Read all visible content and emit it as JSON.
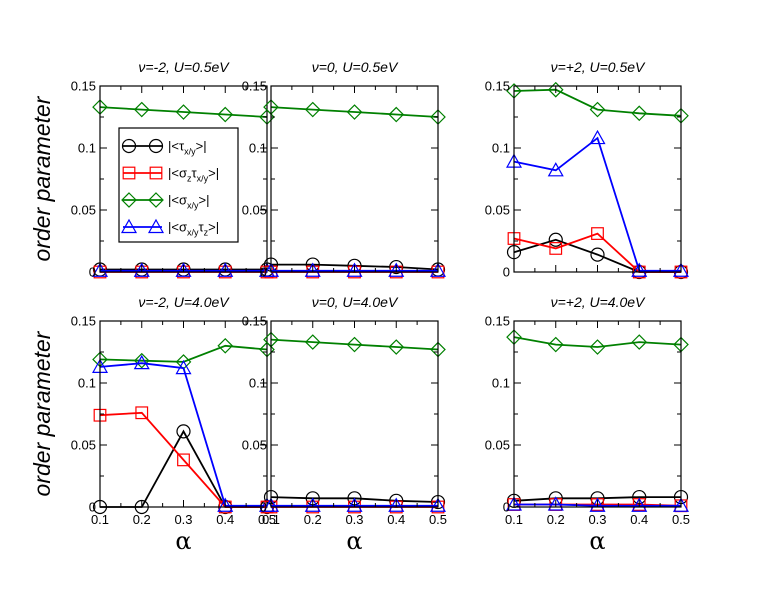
{
  "chart_data": [
    {
      "type": "line",
      "title": "ν=-2, U=0.5eV",
      "xlabel": "",
      "ylabel": "order parameter",
      "x": [
        0.1,
        0.2,
        0.3,
        0.4,
        0.5
      ],
      "xlim": [
        0.1,
        0.5
      ],
      "ylim": [
        0,
        0.15
      ],
      "series": [
        {
          "name": "|<τx/y>|",
          "color": "#000000",
          "marker": "circle",
          "values": [
            0.002,
            0.002,
            0.002,
            0.002,
            0.002
          ]
        },
        {
          "name": "|<σzτx/y>|",
          "color": "#ff0000",
          "marker": "square",
          "values": [
            0.0,
            0.0,
            0.0,
            0.0,
            0.0
          ]
        },
        {
          "name": "|<σx/y>|",
          "color": "#008000",
          "marker": "diamond",
          "values": [
            0.133,
            0.131,
            0.129,
            0.127,
            0.125
          ]
        },
        {
          "name": "|<σx/yτz>|",
          "color": "#0000ff",
          "marker": "triangle",
          "values": [
            0.001,
            0.001,
            0.001,
            0.001,
            0.001
          ]
        }
      ]
    },
    {
      "type": "line",
      "title": "ν=0, U=0.5eV",
      "xlabel": "",
      "ylabel": "",
      "x": [
        0.1,
        0.2,
        0.3,
        0.4,
        0.5
      ],
      "xlim": [
        0.1,
        0.5
      ],
      "ylim": [
        0,
        0.15
      ],
      "series": [
        {
          "name": "|<τx/y>|",
          "color": "#000000",
          "marker": "circle",
          "values": [
            0.006,
            0.006,
            0.005,
            0.004,
            0.002
          ]
        },
        {
          "name": "|<σzτx/y>|",
          "color": "#ff0000",
          "marker": "square",
          "values": [
            0.0,
            0.0,
            0.0,
            0.0,
            0.0
          ]
        },
        {
          "name": "|<σx/y>|",
          "color": "#008000",
          "marker": "diamond",
          "values": [
            0.133,
            0.131,
            0.129,
            0.127,
            0.125
          ]
        },
        {
          "name": "|<σx/yτz>|",
          "color": "#0000ff",
          "marker": "triangle",
          "values": [
            0.001,
            0.001,
            0.001,
            0.001,
            0.001
          ]
        }
      ]
    },
    {
      "type": "line",
      "title": "ν=+2, U=0.5eV",
      "xlabel": "",
      "ylabel": "",
      "x": [
        0.1,
        0.2,
        0.3,
        0.4,
        0.5
      ],
      "xlim": [
        0.1,
        0.5
      ],
      "ylim": [
        0,
        0.15
      ],
      "series": [
        {
          "name": "|<τx/y>|",
          "color": "#000000",
          "marker": "circle",
          "values": [
            0.016,
            0.026,
            0.014,
            0.0,
            0.0
          ]
        },
        {
          "name": "|<σzτx/y>|",
          "color": "#ff0000",
          "marker": "square",
          "values": [
            0.027,
            0.019,
            0.031,
            0.0,
            0.0
          ]
        },
        {
          "name": "|<σx/y>|",
          "color": "#008000",
          "marker": "diamond",
          "values": [
            0.146,
            0.147,
            0.131,
            0.128,
            0.126
          ]
        },
        {
          "name": "|<σx/yτz>|",
          "color": "#0000ff",
          "marker": "triangle",
          "values": [
            0.089,
            0.082,
            0.108,
            0.001,
            0.001
          ]
        }
      ]
    },
    {
      "type": "line",
      "title": "ν=-2, U=4.0eV",
      "xlabel": "α",
      "ylabel": "order parameter",
      "x": [
        0.1,
        0.2,
        0.3,
        0.4,
        0.5
      ],
      "xlim": [
        0.1,
        0.5
      ],
      "ylim": [
        0,
        0.15
      ],
      "series": [
        {
          "name": "|<τx/y>|",
          "color": "#000000",
          "marker": "circle",
          "values": [
            0.0,
            0.0,
            0.061,
            0.0,
            0.0
          ]
        },
        {
          "name": "|<σzτx/y>|",
          "color": "#ff0000",
          "marker": "square",
          "values": [
            0.074,
            0.076,
            0.038,
            0.0,
            0.0
          ]
        },
        {
          "name": "|<σx/y>|",
          "color": "#008000",
          "marker": "diamond",
          "values": [
            0.119,
            0.118,
            0.117,
            0.13,
            0.127
          ]
        },
        {
          "name": "|<σx/yτz>|",
          "color": "#0000ff",
          "marker": "triangle",
          "values": [
            0.113,
            0.116,
            0.112,
            0.001,
            0.001
          ]
        }
      ]
    },
    {
      "type": "line",
      "title": "ν=0, U=4.0eV",
      "xlabel": "α",
      "ylabel": "",
      "x": [
        0.1,
        0.2,
        0.3,
        0.4,
        0.5
      ],
      "xlim": [
        0.1,
        0.5
      ],
      "ylim": [
        0,
        0.15
      ],
      "series": [
        {
          "name": "|<τx/y>|",
          "color": "#000000",
          "marker": "circle",
          "values": [
            0.008,
            0.007,
            0.007,
            0.005,
            0.004
          ]
        },
        {
          "name": "|<σzτx/y>|",
          "color": "#ff0000",
          "marker": "square",
          "values": [
            0.0,
            0.0,
            0.0,
            0.0,
            0.0
          ]
        },
        {
          "name": "|<σx/y>|",
          "color": "#008000",
          "marker": "diamond",
          "values": [
            0.135,
            0.133,
            0.131,
            0.129,
            0.127
          ]
        },
        {
          "name": "|<σx/yτz>|",
          "color": "#0000ff",
          "marker": "triangle",
          "values": [
            0.001,
            0.001,
            0.001,
            0.001,
            0.001
          ]
        }
      ]
    },
    {
      "type": "line",
      "title": "ν=+2, U=4.0eV",
      "xlabel": "α",
      "ylabel": "",
      "x": [
        0.1,
        0.2,
        0.3,
        0.4,
        0.5
      ],
      "xlim": [
        0.1,
        0.5
      ],
      "ylim": [
        0,
        0.15
      ],
      "series": [
        {
          "name": "|<τx/y>|",
          "color": "#000000",
          "marker": "circle",
          "values": [
            0.005,
            0.007,
            0.007,
            0.008,
            0.008
          ]
        },
        {
          "name": "|<σzτx/y>|",
          "color": "#ff0000",
          "marker": "square",
          "values": [
            0.002,
            0.002,
            0.002,
            0.002,
            0.001
          ]
        },
        {
          "name": "|<σx/y>|",
          "color": "#008000",
          "marker": "diamond",
          "values": [
            0.137,
            0.131,
            0.129,
            0.133,
            0.131
          ]
        },
        {
          "name": "|<σx/yτz>|",
          "color": "#0000ff",
          "marker": "triangle",
          "values": [
            0.002,
            0.002,
            0.001,
            0.001,
            0.001
          ]
        }
      ]
    }
  ],
  "axis": {
    "y_ticks": [
      0,
      0.05,
      0.1,
      0.15
    ],
    "y_tick_labels": [
      "0",
      "0.05",
      "0.1",
      "0.15"
    ],
    "x_ticks": [
      0.1,
      0.2,
      0.3,
      0.4,
      0.5
    ],
    "x_tick_labels": [
      "0.1",
      "0.2",
      "0.3",
      "0.4",
      "0.5"
    ]
  },
  "legend": {
    "placement": "inside top-left panel, upper-left",
    "entries": [
      {
        "main": "|<τ",
        "sub": "x/y",
        "main2": "",
        "sub2": "",
        "tail": ">|",
        "color": "#000000",
        "marker": "circle"
      },
      {
        "main": "|<σ",
        "sub": "z",
        "main2": "τ",
        "sub2": "x/y",
        "tail": ">|",
        "color": "#ff0000",
        "marker": "square"
      },
      {
        "main": "|<σ",
        "sub": "x/y",
        "main2": "",
        "sub2": "",
        "tail": ">|",
        "color": "#008000",
        "marker": "diamond"
      },
      {
        "main": "|<σ",
        "sub": "x/y",
        "main2": "τ",
        "sub2": "z",
        "tail": ">|",
        "color": "#0000ff",
        "marker": "triangle"
      }
    ]
  }
}
